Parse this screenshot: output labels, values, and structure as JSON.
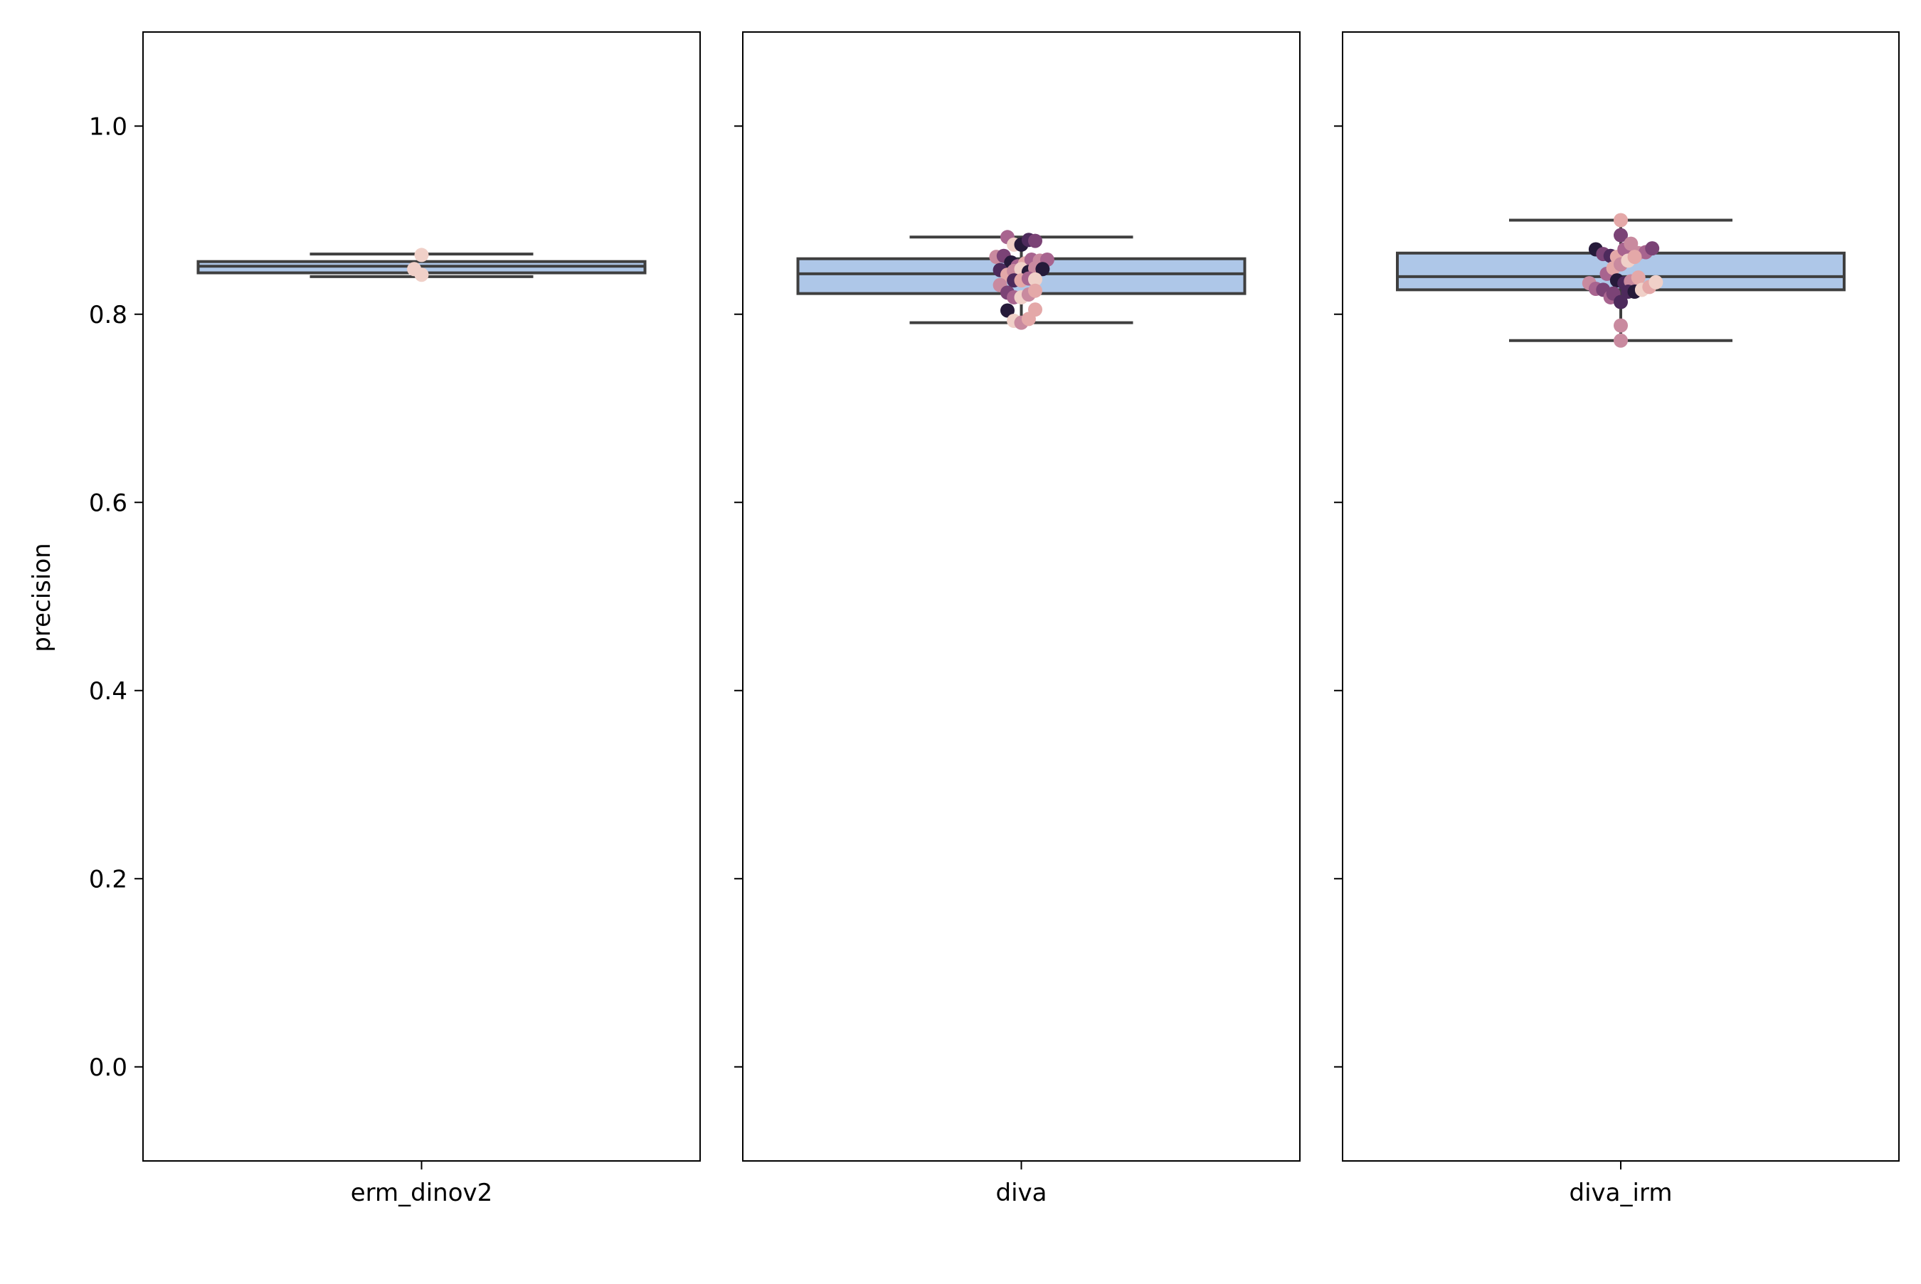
{
  "chart_data": {
    "type": "box",
    "ylabel": "precision",
    "ylim": [
      -0.1,
      1.1
    ],
    "yticks": [
      0.0,
      0.2,
      0.4,
      0.6,
      0.8,
      1.0
    ],
    "ytick_labels": [
      "0.0",
      "0.2",
      "0.4",
      "0.6",
      "0.8",
      "1.0"
    ],
    "shared_y": true,
    "grid": false,
    "colors": {
      "box_fill": "#aec7e8",
      "box_edge": "#3f3f3f",
      "point_palette": [
        "#f0d0c8",
        "#e4a8a8",
        "#c98a9f",
        "#a8648f",
        "#7b4376",
        "#4d2a5c",
        "#261a3a"
      ]
    },
    "panels": [
      {
        "category": "erm_dinov2",
        "box": {
          "whisker_low": 0.84,
          "q1": 0.844,
          "median": 0.851,
          "q3": 0.856,
          "whisker_high": 0.864
        },
        "points": [
          {
            "x": 0.0,
            "y": 0.863,
            "c": 0
          },
          {
            "x": -0.08,
            "y": 0.848,
            "c": 0
          },
          {
            "x": 0.0,
            "y": 0.842,
            "c": 0
          }
        ]
      },
      {
        "category": "diva",
        "box": {
          "whisker_low": 0.791,
          "q1": 0.822,
          "median": 0.843,
          "q3": 0.859,
          "whisker_high": 0.882
        },
        "points": [
          {
            "x": -0.15,
            "y": 0.882,
            "c": 3
          },
          {
            "x": -0.08,
            "y": 0.874,
            "c": 0
          },
          {
            "x": 0.0,
            "y": 0.874,
            "c": 6
          },
          {
            "x": 0.08,
            "y": 0.879,
            "c": 5
          },
          {
            "x": 0.15,
            "y": 0.878,
            "c": 4
          },
          {
            "x": -0.27,
            "y": 0.861,
            "c": 2
          },
          {
            "x": -0.19,
            "y": 0.862,
            "c": 4
          },
          {
            "x": -0.11,
            "y": 0.855,
            "c": 6
          },
          {
            "x": -0.04,
            "y": 0.851,
            "c": 3
          },
          {
            "x": 0.04,
            "y": 0.854,
            "c": 1
          },
          {
            "x": 0.11,
            "y": 0.858,
            "c": 3
          },
          {
            "x": 0.2,
            "y": 0.857,
            "c": 2
          },
          {
            "x": 0.28,
            "y": 0.858,
            "c": 3
          },
          {
            "x": -0.23,
            "y": 0.847,
            "c": 5
          },
          {
            "x": -0.15,
            "y": 0.842,
            "c": 1
          },
          {
            "x": -0.08,
            "y": 0.846,
            "c": 2
          },
          {
            "x": 0.0,
            "y": 0.848,
            "c": 0
          },
          {
            "x": 0.08,
            "y": 0.845,
            "c": 6
          },
          {
            "x": 0.15,
            "y": 0.849,
            "c": 2
          },
          {
            "x": 0.23,
            "y": 0.848,
            "c": 6
          },
          {
            "x": -0.23,
            "y": 0.831,
            "c": 2
          },
          {
            "x": -0.15,
            "y": 0.823,
            "c": 4
          },
          {
            "x": -0.08,
            "y": 0.836,
            "c": 5
          },
          {
            "x": 0.0,
            "y": 0.836,
            "c": 1
          },
          {
            "x": 0.08,
            "y": 0.838,
            "c": 3
          },
          {
            "x": 0.15,
            "y": 0.837,
            "c": 0
          },
          {
            "x": -0.08,
            "y": 0.818,
            "c": 3
          },
          {
            "x": 0.0,
            "y": 0.818,
            "c": 0
          },
          {
            "x": 0.08,
            "y": 0.821,
            "c": 2
          },
          {
            "x": 0.15,
            "y": 0.825,
            "c": 1
          },
          {
            "x": -0.15,
            "y": 0.804,
            "c": 6
          },
          {
            "x": 0.15,
            "y": 0.805,
            "c": 1
          },
          {
            "x": -0.08,
            "y": 0.793,
            "c": 0
          },
          {
            "x": 0.0,
            "y": 0.791,
            "c": 2
          },
          {
            "x": 0.08,
            "y": 0.795,
            "c": 1
          }
        ]
      },
      {
        "category": "diva_irm",
        "box": {
          "whisker_low": 0.772,
          "q1": 0.826,
          "median": 0.84,
          "q3": 0.865,
          "whisker_high": 0.9
        },
        "points": [
          {
            "x": 0.0,
            "y": 0.9,
            "c": 1
          },
          {
            "x": 0.0,
            "y": 0.884,
            "c": 4
          },
          {
            "x": -0.27,
            "y": 0.869,
            "c": 6
          },
          {
            "x": -0.19,
            "y": 0.864,
            "c": 4
          },
          {
            "x": -0.11,
            "y": 0.862,
            "c": 5
          },
          {
            "x": -0.04,
            "y": 0.861,
            "c": 1
          },
          {
            "x": 0.04,
            "y": 0.869,
            "c": 3
          },
          {
            "x": 0.11,
            "y": 0.875,
            "c": 2
          },
          {
            "x": 0.19,
            "y": 0.865,
            "c": 2
          },
          {
            "x": 0.27,
            "y": 0.866,
            "c": 3
          },
          {
            "x": 0.34,
            "y": 0.87,
            "c": 4
          },
          {
            "x": -0.15,
            "y": 0.843,
            "c": 3
          },
          {
            "x": -0.08,
            "y": 0.849,
            "c": 1
          },
          {
            "x": 0.0,
            "y": 0.853,
            "c": 2
          },
          {
            "x": 0.08,
            "y": 0.857,
            "c": 0
          },
          {
            "x": 0.15,
            "y": 0.861,
            "c": 1
          },
          {
            "x": -0.34,
            "y": 0.833,
            "c": 2
          },
          {
            "x": -0.27,
            "y": 0.827,
            "c": 3
          },
          {
            "x": -0.19,
            "y": 0.826,
            "c": 4
          },
          {
            "x": -0.11,
            "y": 0.818,
            "c": 3
          },
          {
            "x": -0.04,
            "y": 0.836,
            "c": 6
          },
          {
            "x": 0.04,
            "y": 0.833,
            "c": 5
          },
          {
            "x": 0.11,
            "y": 0.835,
            "c": 2
          },
          {
            "x": 0.19,
            "y": 0.839,
            "c": 1
          },
          {
            "x": -0.08,
            "y": 0.822,
            "c": 4
          },
          {
            "x": 0.08,
            "y": 0.824,
            "c": 5
          },
          {
            "x": 0.15,
            "y": 0.824,
            "c": 6
          },
          {
            "x": 0.23,
            "y": 0.826,
            "c": 0
          },
          {
            "x": 0.31,
            "y": 0.829,
            "c": 1
          },
          {
            "x": 0.38,
            "y": 0.834,
            "c": 0
          },
          {
            "x": 0.0,
            "y": 0.813,
            "c": 5
          },
          {
            "x": 0.0,
            "y": 0.788,
            "c": 2
          },
          {
            "x": 0.0,
            "y": 0.772,
            "c": 2
          }
        ]
      }
    ]
  }
}
